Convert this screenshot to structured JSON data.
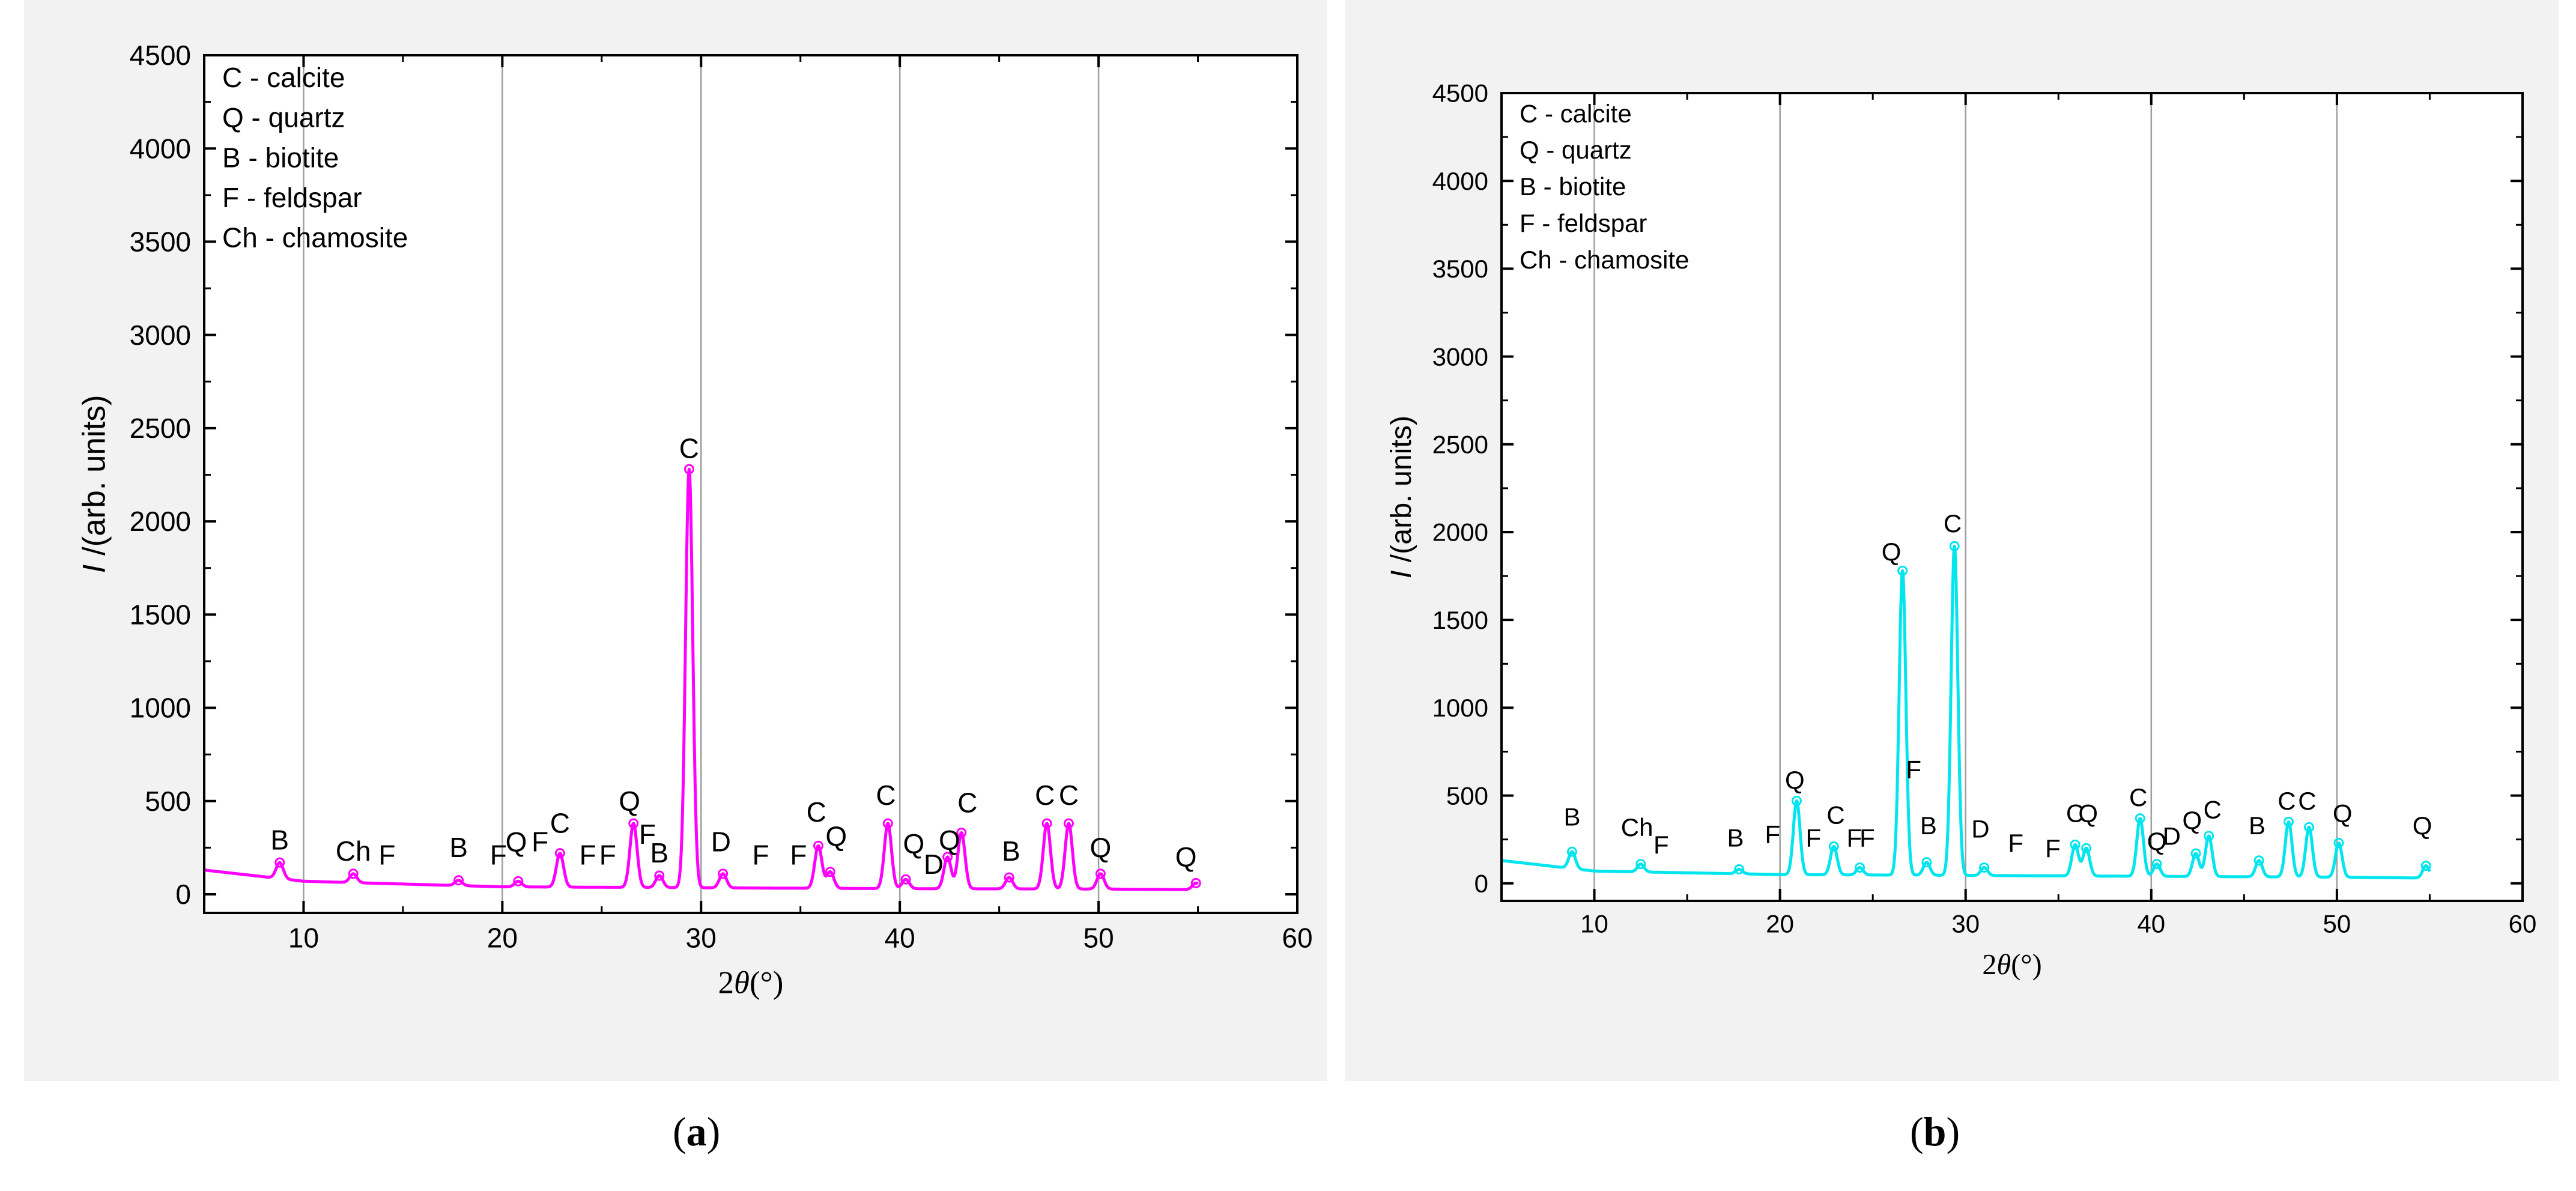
{
  "chart_data": [
    {
      "type": "line",
      "panel_label": "a",
      "color": "#ff00ff",
      "xlabel_prefix": "2",
      "xlabel_theta": "θ",
      "xlabel_unit": "(°)",
      "ylabel_italic": "I",
      "ylabel_rest": " /(arb. units)",
      "xlim": [
        5,
        60
      ],
      "ylim": [
        -100,
        4500
      ],
      "xticks": [
        10,
        20,
        30,
        40,
        50,
        60
      ],
      "yticks": [
        0,
        500,
        1000,
        1500,
        2000,
        2500,
        3000,
        3500,
        4000,
        4500
      ],
      "legend": [
        "C - calcite",
        "Q - quartz",
        "B - biotite",
        "F - feldspar",
        "Ch - chamosite"
      ],
      "baseline": {
        "x": [
          5,
          10,
          20,
          30,
          40,
          50,
          55
        ],
        "y": [
          130,
          70,
          40,
          35,
          30,
          28,
          25
        ]
      },
      "peaks": [
        {
          "x": 8.8,
          "y": 170
        },
        {
          "x": 12.5,
          "y": 110
        },
        {
          "x": 17.8,
          "y": 75
        },
        {
          "x": 20.8,
          "y": 70
        },
        {
          "x": 22.9,
          "y": 220
        },
        {
          "x": 26.6,
          "y": 380
        },
        {
          "x": 27.9,
          "y": 100
        },
        {
          "x": 29.4,
          "y": 2280
        },
        {
          "x": 31.1,
          "y": 110
        },
        {
          "x": 35.9,
          "y": 260
        },
        {
          "x": 36.5,
          "y": 120
        },
        {
          "x": 39.4,
          "y": 380
        },
        {
          "x": 40.3,
          "y": 80
        },
        {
          "x": 42.4,
          "y": 200
        },
        {
          "x": 43.1,
          "y": 330
        },
        {
          "x": 45.5,
          "y": 90
        },
        {
          "x": 47.4,
          "y": 380
        },
        {
          "x": 48.5,
          "y": 380
        },
        {
          "x": 50.1,
          "y": 110
        },
        {
          "x": 54.9,
          "y": 60
        }
      ],
      "annotations": [
        {
          "text": "B",
          "x": 8.8,
          "y": 240
        },
        {
          "text": "Ch",
          "x": 12.5,
          "y": 180
        },
        {
          "text": "F",
          "x": 14.2,
          "y": 160
        },
        {
          "text": "B",
          "x": 17.8,
          "y": 200
        },
        {
          "text": "F",
          "x": 19.8,
          "y": 160
        },
        {
          "text": "Q",
          "x": 20.7,
          "y": 230
        },
        {
          "text": "F",
          "x": 21.9,
          "y": 230
        },
        {
          "text": "C",
          "x": 22.9,
          "y": 330
        },
        {
          "text": "F",
          "x": 24.3,
          "y": 160
        },
        {
          "text": "F",
          "x": 25.3,
          "y": 160
        },
        {
          "text": "Q",
          "x": 26.4,
          "y": 450
        },
        {
          "text": "F",
          "x": 27.3,
          "y": 270
        },
        {
          "text": "B",
          "x": 27.9,
          "y": 170
        },
        {
          "text": "C",
          "x": 29.4,
          "y": 2340
        },
        {
          "text": "D",
          "x": 31.0,
          "y": 230
        },
        {
          "text": "F",
          "x": 33.0,
          "y": 160
        },
        {
          "text": "F",
          "x": 34.9,
          "y": 160
        },
        {
          "text": "C",
          "x": 35.8,
          "y": 390
        },
        {
          "text": "Q",
          "x": 36.8,
          "y": 260
        },
        {
          "text": "C",
          "x": 39.3,
          "y": 480
        },
        {
          "text": "Q",
          "x": 40.7,
          "y": 220
        },
        {
          "text": "D",
          "x": 41.7,
          "y": 110
        },
        {
          "text": "Q",
          "x": 42.5,
          "y": 240
        },
        {
          "text": "C",
          "x": 43.4,
          "y": 440
        },
        {
          "text": "B",
          "x": 45.6,
          "y": 180
        },
        {
          "text": "C",
          "x": 47.3,
          "y": 480
        },
        {
          "text": "C",
          "x": 48.5,
          "y": 480
        },
        {
          "text": "Q",
          "x": 50.1,
          "y": 200
        },
        {
          "text": "Q",
          "x": 54.4,
          "y": 150
        }
      ]
    },
    {
      "type": "line",
      "panel_label": "b",
      "color": "#00e5ee",
      "xlabel_prefix": "2",
      "xlabel_theta": "θ",
      "xlabel_unit": "(°)",
      "ylabel_italic": "I",
      "ylabel_rest": " /(arb. units)",
      "xlim": [
        5,
        60
      ],
      "ylim": [
        -100,
        4500
      ],
      "xticks": [
        10,
        20,
        30,
        40,
        50,
        60
      ],
      "yticks": [
        0,
        500,
        1000,
        1500,
        2000,
        2500,
        3000,
        3500,
        4000,
        4500
      ],
      "legend": [
        "C - calcite",
        "Q - quartz",
        "B - biotite",
        "F - feldspar",
        "Ch - chamosite"
      ],
      "baseline": {
        "x": [
          5,
          10,
          20,
          30,
          40,
          50,
          55
        ],
        "y": [
          130,
          70,
          50,
          45,
          40,
          35,
          30
        ]
      },
      "peaks": [
        {
          "x": 8.8,
          "y": 180
        },
        {
          "x": 12.5,
          "y": 110
        },
        {
          "x": 17.8,
          "y": 80
        },
        {
          "x": 20.9,
          "y": 470
        },
        {
          "x": 22.9,
          "y": 210
        },
        {
          "x": 24.3,
          "y": 90
        },
        {
          "x": 26.6,
          "y": 1780
        },
        {
          "x": 27.9,
          "y": 120
        },
        {
          "x": 29.4,
          "y": 1920
        },
        {
          "x": 31.0,
          "y": 90
        },
        {
          "x": 35.9,
          "y": 220
        },
        {
          "x": 36.5,
          "y": 200
        },
        {
          "x": 39.4,
          "y": 370
        },
        {
          "x": 40.3,
          "y": 110
        },
        {
          "x": 42.4,
          "y": 170
        },
        {
          "x": 43.1,
          "y": 270
        },
        {
          "x": 45.8,
          "y": 130
        },
        {
          "x": 47.4,
          "y": 350
        },
        {
          "x": 48.5,
          "y": 320
        },
        {
          "x": 50.1,
          "y": 230
        },
        {
          "x": 54.8,
          "y": 100
        }
      ],
      "annotations": [
        {
          "text": "B",
          "x": 8.8,
          "y": 330
        },
        {
          "text": "Ch",
          "x": 12.3,
          "y": 270
        },
        {
          "text": "F",
          "x": 13.6,
          "y": 170
        },
        {
          "text": "B",
          "x": 17.6,
          "y": 210
        },
        {
          "text": "F",
          "x": 19.6,
          "y": 230
        },
        {
          "text": "Q",
          "x": 20.8,
          "y": 540
        },
        {
          "text": "F",
          "x": 21.8,
          "y": 210
        },
        {
          "text": "C",
          "x": 23.0,
          "y": 340
        },
        {
          "text": "F",
          "x": 24.0,
          "y": 210
        },
        {
          "text": "F",
          "x": 24.7,
          "y": 210
        },
        {
          "text": "Q",
          "x": 26.0,
          "y": 1840
        },
        {
          "text": "F",
          "x": 27.2,
          "y": 600
        },
        {
          "text": "B",
          "x": 28.0,
          "y": 280
        },
        {
          "text": "C",
          "x": 29.3,
          "y": 2000
        },
        {
          "text": "D",
          "x": 30.8,
          "y": 260
        },
        {
          "text": "F",
          "x": 32.7,
          "y": 180
        },
        {
          "text": "F",
          "x": 34.7,
          "y": 150
        },
        {
          "text": "C",
          "x": 35.9,
          "y": 350
        },
        {
          "text": "Q",
          "x": 36.6,
          "y": 350
        },
        {
          "text": "C",
          "x": 39.3,
          "y": 440
        },
        {
          "text": "Q",
          "x": 40.3,
          "y": 190
        },
        {
          "text": "D",
          "x": 41.1,
          "y": 220
        },
        {
          "text": "Q",
          "x": 42.2,
          "y": 310
        },
        {
          "text": "C",
          "x": 43.3,
          "y": 370
        },
        {
          "text": "B",
          "x": 45.7,
          "y": 280
        },
        {
          "text": "C",
          "x": 47.3,
          "y": 420
        },
        {
          "text": "C",
          "x": 48.4,
          "y": 420
        },
        {
          "text": "Q",
          "x": 50.3,
          "y": 350
        },
        {
          "text": "Q",
          "x": 54.6,
          "y": 280
        }
      ]
    }
  ],
  "captions": {
    "a": "a",
    "b": "b"
  }
}
